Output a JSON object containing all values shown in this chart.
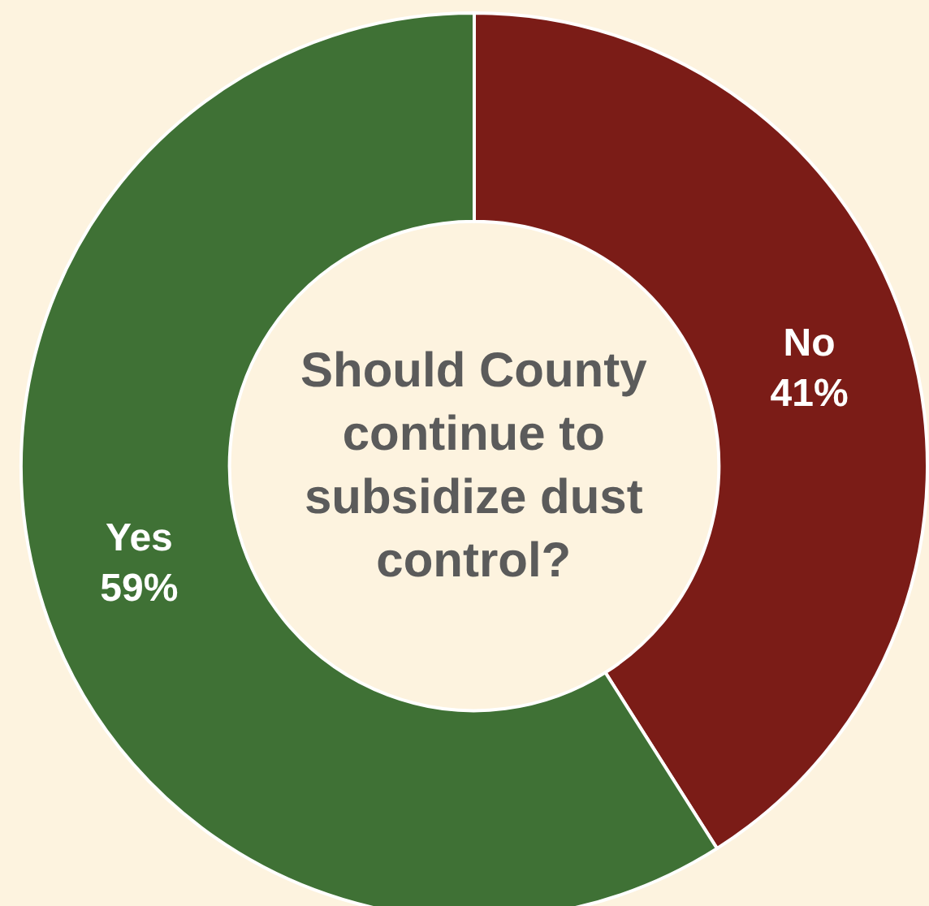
{
  "chart_data": {
    "type": "donut",
    "title": "Should County continue to subsidize dust control?",
    "categories": [
      "No",
      "Yes"
    ],
    "values": [
      41,
      59
    ],
    "value_labels": [
      "41%",
      "59%"
    ],
    "colors": [
      "#7b1c17",
      "#3f7135"
    ],
    "legend": false
  }
}
